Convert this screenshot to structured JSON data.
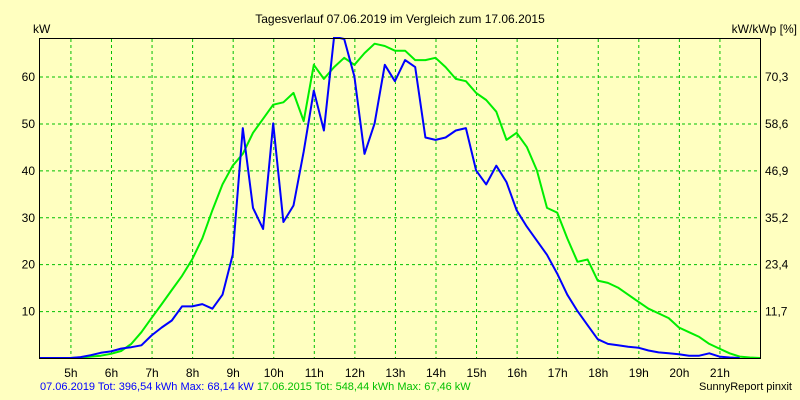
{
  "chart_data": {
    "type": "line",
    "title": "Tagesverlauf 07.06.2019 im Vergleich zum 17.06.2015",
    "ylabel_left": "kW",
    "ylabel_right": "kW/kWp [%]",
    "x_ticks": [
      "5h",
      "6h",
      "7h",
      "8h",
      "9h",
      "10h",
      "11h",
      "12h",
      "13h",
      "14h",
      "15h",
      "16h",
      "17h",
      "18h",
      "19h",
      "20h",
      "21h"
    ],
    "xlim": [
      4.25,
      22.0
    ],
    "ylim": [
      0,
      68
    ],
    "y_ticks_left": [
      10,
      20,
      30,
      40,
      50,
      60
    ],
    "y_ticks_right": [
      "11,7",
      "23,4",
      "35,2",
      "46,9",
      "58,6",
      "70,3"
    ],
    "grid": true,
    "series": [
      {
        "name": "07.06.2019",
        "color": "#0000ff",
        "x": [
          4.25,
          4.75,
          5.0,
          5.25,
          5.5,
          5.75,
          6.0,
          6.25,
          6.5,
          6.75,
          7.0,
          7.25,
          7.5,
          7.75,
          8.0,
          8.25,
          8.5,
          8.75,
          9.0,
          9.25,
          9.5,
          9.75,
          10.0,
          10.25,
          10.5,
          10.75,
          11.0,
          11.25,
          11.5,
          11.75,
          12.0,
          12.25,
          12.5,
          12.75,
          13.0,
          13.25,
          13.5,
          13.75,
          14.0,
          14.25,
          14.5,
          14.75,
          15.0,
          15.25,
          15.5,
          15.75,
          16.0,
          16.25,
          16.5,
          16.75,
          17.0,
          17.25,
          17.5,
          17.75,
          18.0,
          18.25,
          18.5,
          18.75,
          19.0,
          19.25,
          19.5,
          19.75,
          20.0,
          20.25,
          20.5,
          20.75,
          21.0,
          21.25,
          21.5
        ],
        "values": [
          0,
          0,
          0,
          0.2,
          0.6,
          1.1,
          1.4,
          2.0,
          2.3,
          2.7,
          4.8,
          6.5,
          8.0,
          11.0,
          11.0,
          11.5,
          10.5,
          13.5,
          22.0,
          49.0,
          32.0,
          27.5,
          50.0,
          29.0,
          32.5,
          44.0,
          57.0,
          48.5,
          68.5,
          68.0,
          60.0,
          43.5,
          50.0,
          62.5,
          59.0,
          63.5,
          62.0,
          47.0,
          46.5,
          47.0,
          48.5,
          49.0,
          40.0,
          37.0,
          41.0,
          37.5,
          31.5,
          28.0,
          25.0,
          22.0,
          18.0,
          13.5,
          10.0,
          7.0,
          4.0,
          3.0,
          2.7,
          2.4,
          2.2,
          1.6,
          1.2,
          1.0,
          0.8,
          0.5,
          0.5,
          1.0,
          0.3,
          0.1,
          0
        ]
      },
      {
        "name": "17.06.2015",
        "color": "#00ee00",
        "x": [
          4.25,
          4.75,
          5.0,
          5.25,
          5.5,
          5.75,
          6.0,
          6.25,
          6.5,
          6.75,
          7.0,
          7.25,
          7.5,
          7.75,
          8.0,
          8.25,
          8.5,
          8.75,
          9.0,
          9.25,
          9.5,
          9.75,
          10.0,
          10.25,
          10.5,
          10.75,
          11.0,
          11.25,
          11.5,
          11.75,
          12.0,
          12.25,
          12.5,
          12.75,
          13.0,
          13.25,
          13.5,
          13.75,
          14.0,
          14.25,
          14.5,
          14.75,
          15.0,
          15.25,
          15.5,
          15.75,
          16.0,
          16.25,
          16.5,
          16.75,
          17.0,
          17.25,
          17.5,
          17.75,
          18.0,
          18.25,
          18.5,
          18.75,
          19.0,
          19.25,
          19.5,
          19.75,
          20.0,
          20.25,
          20.5,
          20.75,
          21.0,
          21.25,
          21.5,
          21.75,
          22.0
        ],
        "values": [
          0,
          0,
          0,
          0.1,
          0.3,
          0.5,
          0.9,
          1.5,
          3.0,
          5.5,
          8.5,
          11.5,
          14.5,
          17.5,
          21.0,
          25.5,
          31.5,
          37.0,
          41.0,
          43.5,
          48.0,
          51.0,
          54.0,
          54.5,
          56.5,
          50.5,
          62.5,
          59.5,
          62.0,
          64.0,
          62.5,
          65.0,
          67.0,
          66.5,
          65.5,
          65.5,
          63.5,
          63.5,
          64.0,
          62.0,
          59.5,
          59.0,
          56.5,
          55.0,
          52.5,
          46.5,
          48.0,
          45.0,
          40.0,
          32.0,
          31.0,
          25.5,
          20.5,
          21.0,
          16.5,
          16.0,
          15.0,
          13.5,
          12.0,
          10.5,
          9.5,
          8.5,
          6.5,
          5.5,
          4.5,
          3.0,
          2.0,
          1.0,
          0.3,
          0.1,
          0
        ]
      }
    ]
  },
  "footer": {
    "series1_text": "07.06.2019 Tot: 396,54 kWh Max: 68,14 kW",
    "series2_text": "17.06.2015 Tot: 548,44 kWh Max: 67,46 kW",
    "brand": "SunnyReport pinxit"
  }
}
